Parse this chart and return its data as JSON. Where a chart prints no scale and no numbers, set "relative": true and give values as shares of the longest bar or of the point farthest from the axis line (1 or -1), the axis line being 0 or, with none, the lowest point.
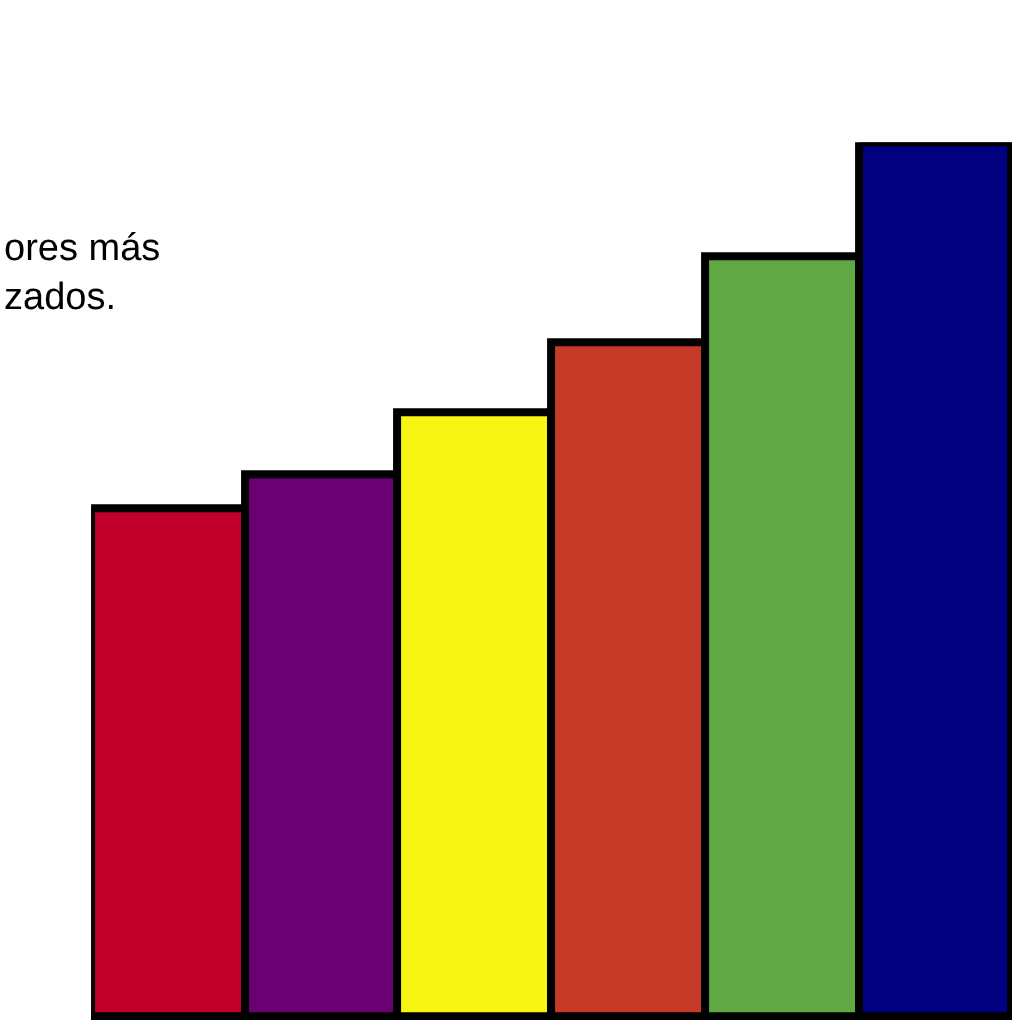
{
  "chart_data": {
    "type": "bar",
    "relative": true,
    "categories": [
      null,
      null,
      null,
      null,
      null,
      null
    ],
    "values": [
      0.58,
      0.62,
      0.69,
      0.77,
      0.87,
      1.0
    ],
    "colors": [
      "#c0002a",
      "#6a0071",
      "#f7f312",
      "#c63a27",
      "#5fa843",
      "#01007f"
    ],
    "annotations": [
      "ores más\nzados."
    ]
  }
}
